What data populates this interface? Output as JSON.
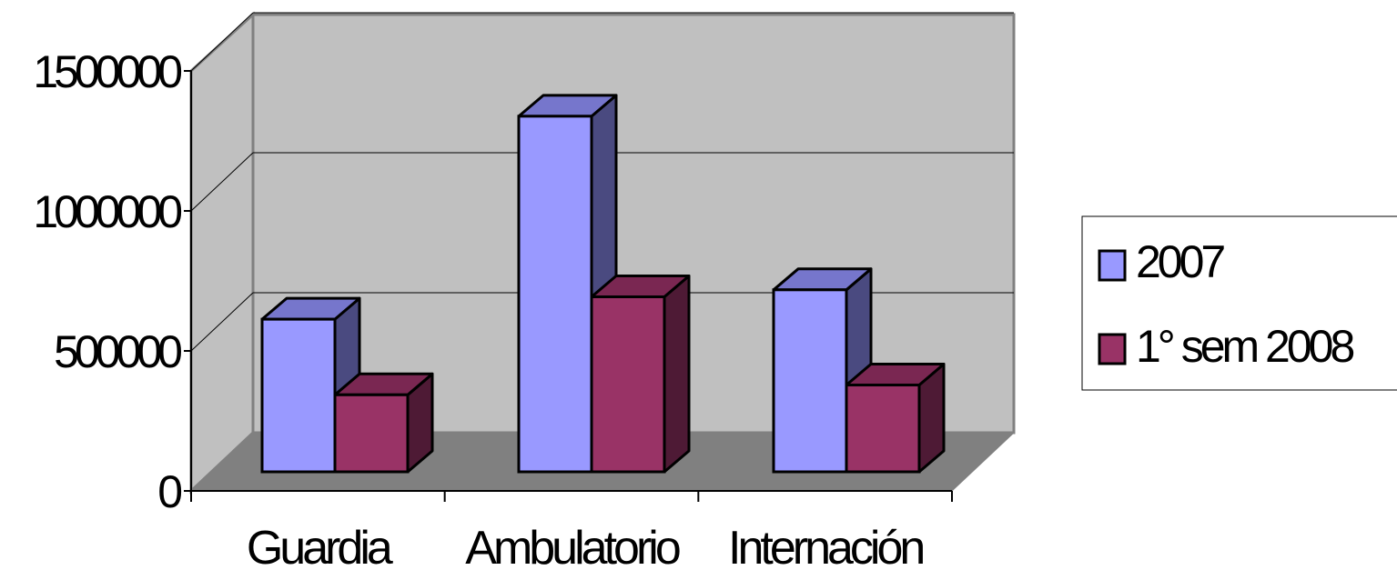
{
  "chart_data": {
    "type": "bar",
    "categories": [
      "Guardia",
      "Ambulatorio",
      "Internación"
    ],
    "series": [
      {
        "name": "2007",
        "values": [
          545000,
          1270000,
          650000
        ]
      },
      {
        "name": "1° sem 2008",
        "values": [
          275000,
          625000,
          310000
        ]
      }
    ],
    "ylim": [
      0,
      1500000
    ],
    "yticks": [
      0,
      500000,
      1000000,
      1500000
    ],
    "ytick_labels": [
      "0",
      "500000",
      "1000000",
      "1500000"
    ],
    "grid": true,
    "legend_position": "right",
    "style": "3d-clustered-column",
    "colors": {
      "series_front": [
        "#9999ff",
        "#993366"
      ],
      "series_top": [
        "#7676cc",
        "#7a2752"
      ],
      "series_side": [
        "#4a4a80",
        "#4e1a35"
      ],
      "wall": "#c0c0c0",
      "floor": "#808080"
    }
  }
}
